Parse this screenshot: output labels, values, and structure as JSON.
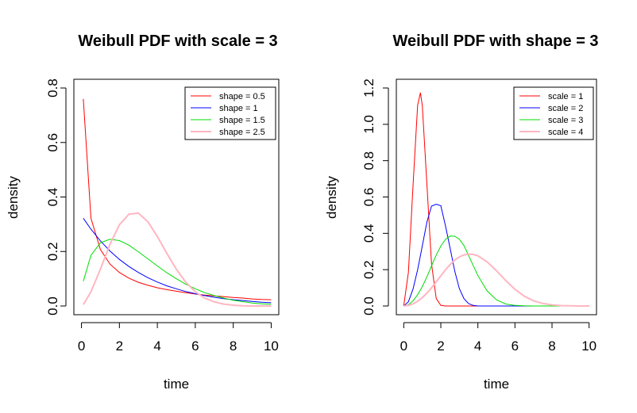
{
  "chart_data": [
    {
      "type": "line",
      "title": "Weibull PDF with scale = 3",
      "xlabel": "time",
      "ylabel": "density",
      "xlim": [
        0,
        10
      ],
      "ylim": [
        0,
        0.8
      ],
      "xticks": [
        "0",
        "2",
        "4",
        "6",
        "8",
        "10"
      ],
      "yticks": [
        "0.0",
        "0.2",
        "0.4",
        "0.6",
        "0.8"
      ],
      "legend_position": "top-right",
      "x": [
        0.1,
        0.5,
        1,
        1.5,
        2,
        2.5,
        3,
        3.5,
        4,
        4.5,
        5,
        5.5,
        6,
        6.5,
        7,
        7.5,
        8,
        8.5,
        9,
        9.5,
        10
      ],
      "series": [
        {
          "name": "shape = 0.5",
          "color": "#ff0000",
          "values": [
            0.76,
            0.322,
            0.207,
            0.154,
            0.123,
            0.102,
            0.087,
            0.076,
            0.067,
            0.06,
            0.054,
            0.049,
            0.044,
            0.04,
            0.037,
            0.034,
            0.031,
            0.029,
            0.026,
            0.024,
            0.023
          ]
        },
        {
          "name": "shape = 1",
          "color": "#0000ff",
          "values": [
            0.322,
            0.282,
            0.239,
            0.202,
            0.171,
            0.145,
            0.123,
            0.104,
            0.088,
            0.074,
            0.063,
            0.053,
            0.045,
            0.038,
            0.032,
            0.027,
            0.023,
            0.02,
            0.017,
            0.014,
            0.012
          ]
        },
        {
          "name": "shape = 1.5",
          "color": "#00dd00",
          "values": [
            0.091,
            0.186,
            0.232,
            0.245,
            0.24,
            0.223,
            0.199,
            0.173,
            0.147,
            0.122,
            0.1,
            0.08,
            0.063,
            0.049,
            0.038,
            0.029,
            0.021,
            0.016,
            0.011,
            0.008,
            0.006
          ]
        },
        {
          "name": "shape = 2.5",
          "color": "#ffb6c1",
          "values": [
            0.005,
            0.052,
            0.135,
            0.226,
            0.298,
            0.337,
            0.341,
            0.309,
            0.255,
            0.193,
            0.135,
            0.087,
            0.052,
            0.029,
            0.015,
            0.007,
            0.003,
            0.001,
            0.0,
            0.0,
            0.0
          ]
        }
      ]
    },
    {
      "type": "line",
      "title": "Weibull PDF with shape = 3",
      "xlabel": "time",
      "ylabel": "density",
      "xlim": [
        0,
        10
      ],
      "ylim": [
        0,
        1.2
      ],
      "xticks": [
        "0",
        "2",
        "4",
        "6",
        "8",
        "10"
      ],
      "yticks": [
        "0.0",
        "0.2",
        "0.4",
        "0.6",
        "0.8",
        "1.0",
        "1.2"
      ],
      "legend_position": "top-right",
      "x": [
        0,
        0.25,
        0.5,
        0.75,
        0.9,
        1,
        1.25,
        1.5,
        1.75,
        2,
        2.25,
        2.5,
        2.75,
        3,
        3.25,
        3.5,
        3.75,
        4,
        4.5,
        5,
        5.5,
        6,
        6.5,
        7,
        7.5,
        8,
        8.5,
        9,
        9.5,
        10
      ],
      "series": [
        {
          "name": "scale = 1",
          "color": "#ff0000",
          "values": [
            0,
            0.186,
            0.662,
            1.105,
            1.174,
            1.104,
            0.669,
            0.232,
            0.042,
            0.003,
            0.0,
            0.0,
            0.0,
            0.0,
            0.0,
            0.0,
            0.0,
            0.0,
            0.0,
            0.0,
            0.0,
            0.0,
            0.0,
            0.0,
            0.0,
            0.0,
            0.0,
            0.0,
            0.0,
            0.0
          ]
        },
        {
          "name": "scale = 2",
          "color": "#0000ff",
          "values": [
            0,
            0.023,
            0.093,
            0.199,
            0.277,
            0.331,
            0.462,
            0.55,
            0.56,
            0.552,
            0.443,
            0.318,
            0.193,
            0.096,
            0.04,
            0.013,
            0.003,
            0.0,
            0.0,
            0.0,
            0.0,
            0.0,
            0.0,
            0.0,
            0.0,
            0.0,
            0.0,
            0.0,
            0.0,
            0.0
          ]
        },
        {
          "name": "scale = 3",
          "color": "#00dd00",
          "values": [
            0,
            0.007,
            0.028,
            0.062,
            0.088,
            0.107,
            0.16,
            0.221,
            0.28,
            0.33,
            0.366,
            0.385,
            0.384,
            0.368,
            0.332,
            0.278,
            0.222,
            0.167,
            0.083,
            0.034,
            0.011,
            0.003,
            0.001,
            0.0,
            0.0,
            0.0,
            0.0,
            0.0,
            0.0,
            0.0
          ]
        },
        {
          "name": "scale = 4",
          "color": "#ffb6c1",
          "values": [
            0,
            0.003,
            0.012,
            0.026,
            0.037,
            0.046,
            0.071,
            0.1,
            0.133,
            0.166,
            0.199,
            0.228,
            0.253,
            0.27,
            0.281,
            0.286,
            0.284,
            0.276,
            0.243,
            0.194,
            0.14,
            0.092,
            0.054,
            0.029,
            0.014,
            0.006,
            0.002,
            0.001,
            0.0,
            0.0
          ]
        }
      ]
    }
  ]
}
